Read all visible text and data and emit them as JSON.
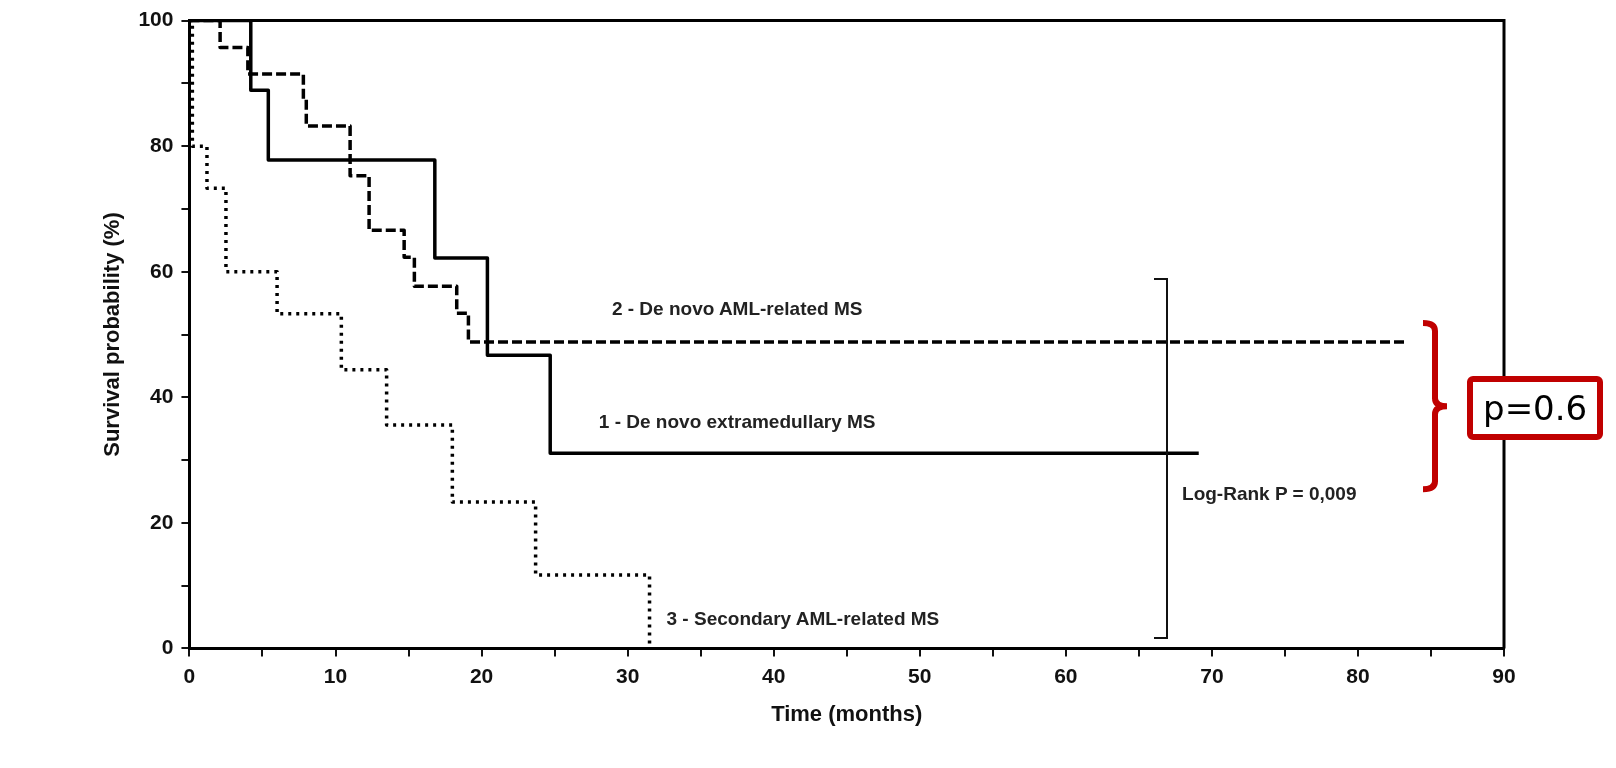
{
  "chart_data": {
    "type": "step",
    "xlabel": "Time (months)",
    "ylabel": "Survival probability (%)",
    "xlim": [
      0,
      90
    ],
    "xticks": [
      0,
      {
        "value": 5,
        "label": null
      },
      10,
      {
        "value": 15,
        "label": null
      },
      20,
      {
        "value": 25,
        "label": null
      },
      30,
      {
        "value": 35,
        "label": null
      },
      40,
      {
        "value": 45,
        "label": null
      },
      50,
      {
        "value": 55,
        "label": null
      },
      60,
      {
        "value": 65,
        "label": null
      },
      70,
      {
        "value": 75,
        "label": null
      },
      80,
      {
        "value": 85,
        "label": null
      },
      90
    ],
    "ylim": [
      0,
      100
    ],
    "yticks": [
      0,
      {
        "value": 10,
        "label": null
      },
      20,
      {
        "value": 30,
        "label": null
      },
      40,
      {
        "value": 50,
        "label": null
      },
      60,
      {
        "value": 70,
        "label": null
      },
      80,
      {
        "value": 90,
        "label": null
      },
      100
    ],
    "grid": false,
    "legend": false,
    "marker": "none",
    "series": [
      {
        "name": "1 - De novo extramedullary MS",
        "color": "#000000",
        "line_style": "solid",
        "x": [
          0,
          4.2,
          5.4,
          16.8,
          20.4,
          24.7,
          69.1
        ],
        "values": [
          100,
          88.9,
          77.8,
          62.2,
          46.7,
          31.1,
          31.1
        ]
      },
      {
        "name": "2 - De novo AML-related MS",
        "color": "#000000",
        "line_style": "dashed",
        "x": [
          0,
          2.1,
          4.0,
          7.8,
          8.0,
          11.0,
          12.3,
          14.7,
          15.4,
          18.3,
          19.1,
          83.4
        ],
        "values": [
          100,
          95.7,
          91.5,
          87.5,
          83.2,
          75.3,
          66.6,
          62.3,
          57.7,
          53.4,
          48.8,
          48.8
        ]
      },
      {
        "name": "3 - Secondary AML-related MS",
        "color": "#000000",
        "line_style": "dotted",
        "x": [
          0,
          0.2,
          1.2,
          2.5,
          6.0,
          10.4,
          13.5,
          18.0,
          23.7,
          31.5
        ],
        "values": [
          100,
          80,
          73.3,
          60,
          53.3,
          44.4,
          35.6,
          23.3,
          11.7,
          0
        ]
      }
    ],
    "annotations": [
      "Log-Rank P = 0,009",
      "p=0.6"
    ]
  }
}
